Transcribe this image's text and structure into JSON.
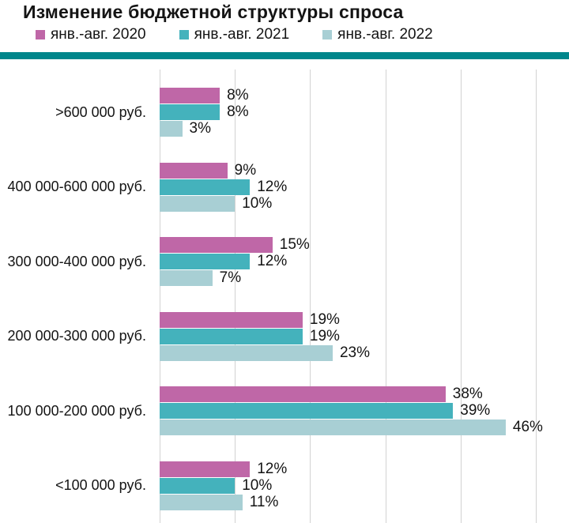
{
  "title": "Изменение бюджетной структуры спроса",
  "accent_color": "#00868b",
  "gridline_color": "#d2d2d2",
  "chart_data": {
    "type": "bar",
    "orientation": "horizontal",
    "title": "Изменение бюджетной структуры спроса",
    "categories": [
      ">600 000 руб.",
      "400 000-600 000 руб.",
      "300 000-400 000 руб.",
      "200 000-300 000 руб.",
      "100 000-200 000 руб.",
      "<100 000 руб."
    ],
    "series": [
      {
        "name": "янв.-авг. 2020",
        "color": "#bf67a7",
        "values": [
          8,
          9,
          15,
          19,
          38,
          12
        ]
      },
      {
        "name": "янв.-авг. 2021",
        "color": "#44b2bc",
        "values": [
          8,
          12,
          12,
          19,
          39,
          10
        ]
      },
      {
        "name": "янв.-авг. 2022",
        "color": "#a8cfd4",
        "values": [
          3,
          10,
          7,
          23,
          46,
          11
        ]
      }
    ],
    "value_suffix": "%",
    "xlim": [
      0,
      50
    ],
    "gridline_values": [
      0,
      10,
      20,
      30,
      40,
      50
    ],
    "grid": "vertical",
    "legend_position": "top",
    "data_labels": true,
    "xlabel": "",
    "ylabel": ""
  }
}
